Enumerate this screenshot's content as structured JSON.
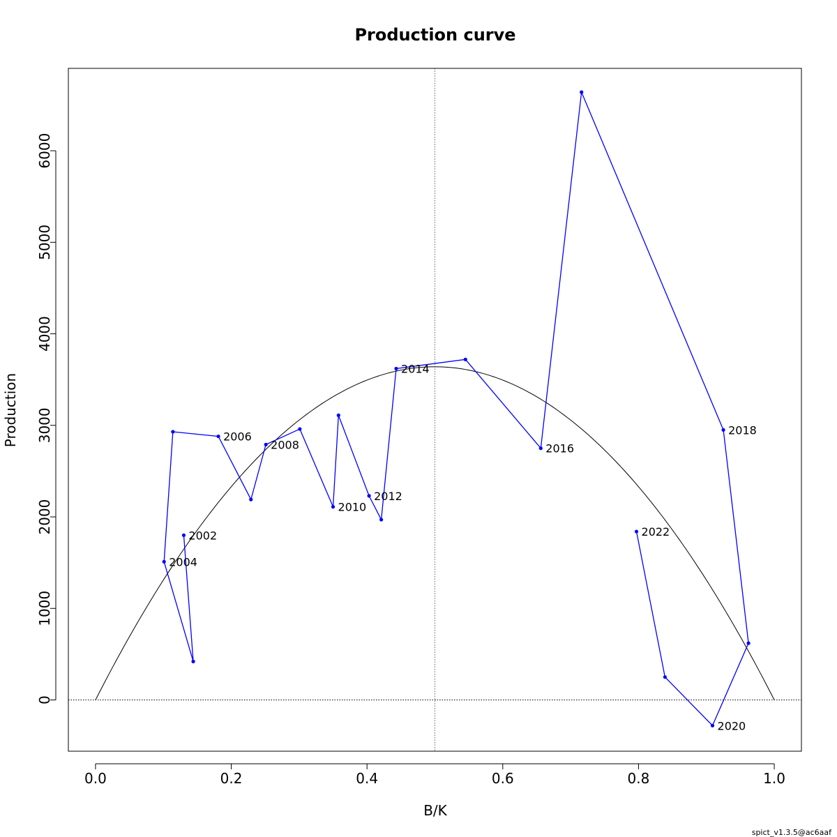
{
  "chart_data": {
    "type": "line",
    "title": "Production curve",
    "xlabel": "B/K",
    "ylabel": "Production",
    "xlim": [
      -0.04,
      1.04
    ],
    "ylim": [
      -560,
      6900
    ],
    "x_ticks": [
      0.0,
      0.2,
      0.4,
      0.6,
      0.8,
      1.0
    ],
    "x_tick_labels": [
      "0.0",
      "0.2",
      "0.4",
      "0.6",
      "0.8",
      "1.0"
    ],
    "y_ticks": [
      0,
      1000,
      2000,
      3000,
      4000,
      5000,
      6000
    ],
    "y_tick_labels": [
      "0",
      "1000",
      "2000",
      "3000",
      "4000",
      "5000",
      "6000"
    ],
    "bmsy_line_x": 0.5,
    "zero_line_y": 0,
    "curve": {
      "shape": "quadratic",
      "max_production": 3640,
      "peak_bk": 0.5,
      "color": "#000000"
    },
    "series": [
      {
        "color": "#0000ff",
        "points": [
          {
            "x": 0.13,
            "y": 1800,
            "label": "2002"
          },
          {
            "x": 0.144,
            "y": 420,
            "label": ""
          },
          {
            "x": 0.101,
            "y": 1510,
            "label": "2004"
          },
          {
            "x": 0.114,
            "y": 2930,
            "label": ""
          },
          {
            "x": 0.181,
            "y": 2880,
            "label": "2006"
          },
          {
            "x": 0.229,
            "y": 2190,
            "label": ""
          },
          {
            "x": 0.251,
            "y": 2790,
            "label": "2008"
          },
          {
            "x": 0.301,
            "y": 2960,
            "label": ""
          },
          {
            "x": 0.35,
            "y": 2110,
            "label": "2010"
          },
          {
            "x": 0.358,
            "y": 3110,
            "label": ""
          },
          {
            "x": 0.403,
            "y": 2230,
            "label": "2012"
          },
          {
            "x": 0.421,
            "y": 1970,
            "label": ""
          },
          {
            "x": 0.443,
            "y": 3620,
            "label": "2014"
          },
          {
            "x": 0.545,
            "y": 3720,
            "label": ""
          },
          {
            "x": 0.656,
            "y": 2750,
            "label": "2016"
          },
          {
            "x": 0.716,
            "y": 6640,
            "label": ""
          },
          {
            "x": 0.925,
            "y": 2950,
            "label": "2018"
          },
          {
            "x": 0.962,
            "y": 620,
            "label": ""
          },
          {
            "x": 0.909,
            "y": -280,
            "label": "2020"
          },
          {
            "x": 0.839,
            "y": 250,
            "label": ""
          },
          {
            "x": 0.797,
            "y": 1840,
            "label": "2022"
          }
        ]
      }
    ]
  },
  "footer": "spict_v1.3.5@ac6aaf"
}
